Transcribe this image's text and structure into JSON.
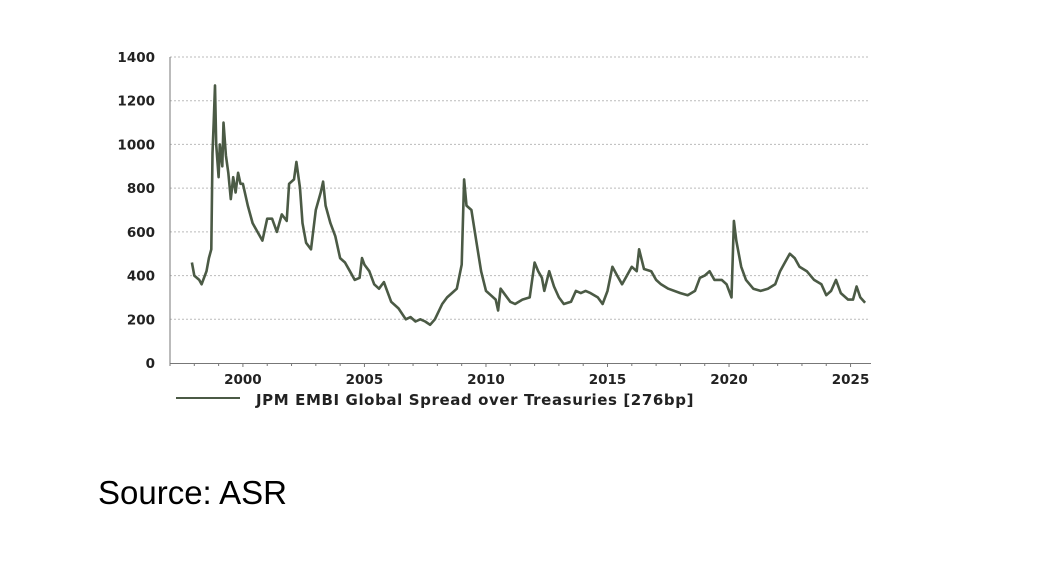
{
  "chart_data": {
    "type": "line",
    "title": "",
    "xlabel": "",
    "ylabel": "",
    "ylim": [
      0,
      1400
    ],
    "xlim": [
      1997,
      2025.8
    ],
    "yticks": [
      0,
      200,
      400,
      600,
      800,
      1000,
      1200,
      1400
    ],
    "xticks": [
      2000,
      2005,
      2010,
      2015,
      2020,
      2025
    ],
    "grid": "horizontal dotted",
    "legend_placement": "bottom",
    "series": [
      {
        "name": "JPM EMBI Global Spread over Treasuries [276bp]",
        "color": "#4b5a45",
        "x": [
          1997.9,
          1998.0,
          1998.2,
          1998.3,
          1998.5,
          1998.6,
          1998.7,
          1998.75,
          1998.8,
          1998.85,
          1998.9,
          1999.0,
          1999.05,
          1999.15,
          1999.2,
          1999.3,
          1999.4,
          1999.5,
          1999.6,
          1999.7,
          1999.8,
          1999.9,
          2000.0,
          2000.2,
          2000.4,
          2000.6,
          2000.8,
          2001.0,
          2001.2,
          2001.4,
          2001.6,
          2001.8,
          2001.9,
          2002.1,
          2002.2,
          2002.35,
          2002.45,
          2002.6,
          2002.8,
          2003.0,
          2003.2,
          2003.3,
          2003.4,
          2003.6,
          2003.8,
          2004.0,
          2004.2,
          2004.4,
          2004.6,
          2004.8,
          2004.9,
          2005.0,
          2005.2,
          2005.4,
          2005.6,
          2005.8,
          2005.9,
          2006.1,
          2006.4,
          2006.7,
          2006.9,
          2007.1,
          2007.3,
          2007.5,
          2007.7,
          2007.9,
          2008.2,
          2008.4,
          2008.6,
          2008.8,
          2009.0,
          2009.1,
          2009.2,
          2009.4,
          2009.6,
          2009.8,
          2010.0,
          2010.2,
          2010.4,
          2010.5,
          2010.6,
          2010.8,
          2011.0,
          2011.2,
          2011.5,
          2011.8,
          2012.0,
          2012.15,
          2012.3,
          2012.4,
          2012.6,
          2012.8,
          2013.0,
          2013.2,
          2013.5,
          2013.7,
          2013.9,
          2014.1,
          2014.3,
          2014.6,
          2014.8,
          2015.0,
          2015.2,
          2015.4,
          2015.6,
          2015.8,
          2016.0,
          2016.2,
          2016.3,
          2016.5,
          2016.8,
          2017.0,
          2017.2,
          2017.5,
          2018.0,
          2018.3,
          2018.6,
          2018.8,
          2019.0,
          2019.2,
          2019.4,
          2019.7,
          2019.9,
          2020.1,
          2020.2,
          2020.3,
          2020.5,
          2020.7,
          2021.0,
          2021.3,
          2021.6,
          2021.9,
          2022.1,
          2022.3,
          2022.5,
          2022.7,
          2022.9,
          2023.2,
          2023.5,
          2023.8,
          2024.0,
          2024.2,
          2024.4,
          2024.6,
          2024.9,
          2025.1,
          2025.25,
          2025.4,
          2025.6
        ],
        "values": [
          460,
          400,
          380,
          360,
          420,
          480,
          520,
          960,
          1100,
          1270,
          1000,
          850,
          1000,
          900,
          1100,
          950,
          870,
          750,
          850,
          780,
          870,
          820,
          820,
          720,
          640,
          600,
          560,
          660,
          660,
          600,
          680,
          650,
          820,
          840,
          920,
          800,
          640,
          550,
          520,
          700,
          780,
          830,
          720,
          640,
          580,
          480,
          460,
          420,
          380,
          390,
          480,
          450,
          420,
          360,
          340,
          370,
          340,
          280,
          250,
          200,
          210,
          190,
          200,
          190,
          175,
          200,
          270,
          300,
          320,
          340,
          450,
          840,
          720,
          700,
          560,
          420,
          330,
          310,
          290,
          240,
          340,
          310,
          280,
          270,
          290,
          300,
          460,
          420,
          390,
          330,
          420,
          350,
          300,
          270,
          280,
          330,
          320,
          330,
          320,
          300,
          270,
          330,
          440,
          400,
          360,
          400,
          440,
          420,
          520,
          430,
          420,
          380,
          360,
          340,
          320,
          310,
          330,
          390,
          400,
          420,
          380,
          380,
          360,
          300,
          650,
          560,
          440,
          380,
          340,
          330,
          340,
          360,
          420,
          460,
          500,
          480,
          440,
          420,
          380,
          360,
          310,
          330,
          380,
          320,
          290,
          290,
          350,
          300,
          276
        ]
      }
    ]
  },
  "source": "Source: ASR"
}
